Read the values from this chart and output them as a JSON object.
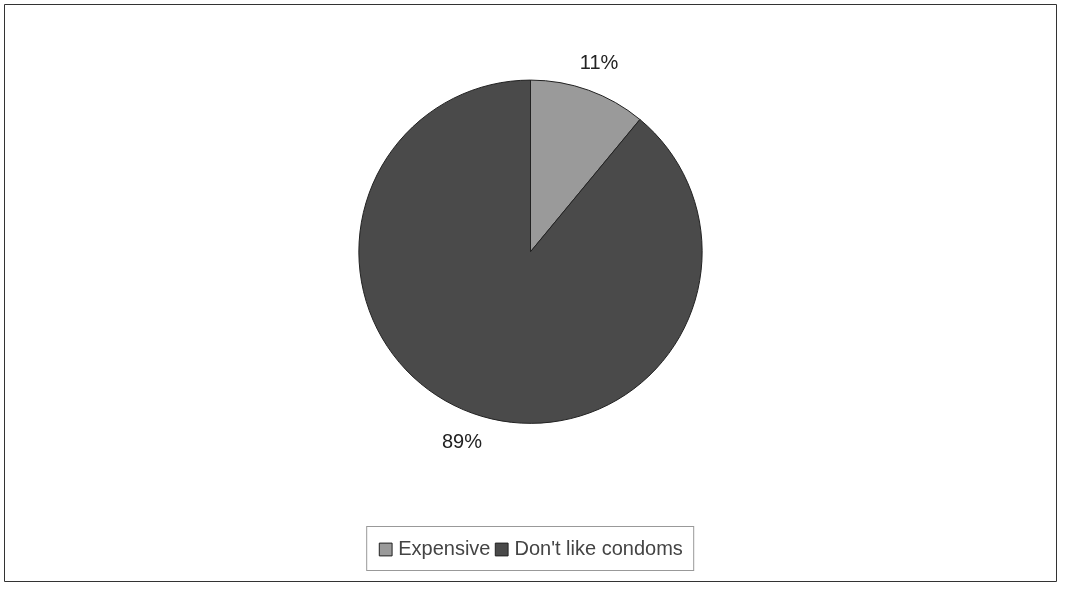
{
  "chart_data": {
    "type": "pie",
    "categories": [
      "Expensive",
      "Don't like condoms"
    ],
    "values": [
      11,
      89
    ],
    "colors": [
      "#9a9a9a",
      "#4a4a4a"
    ],
    "value_labels": [
      "11%",
      "89%"
    ],
    "legend": "bottom"
  }
}
